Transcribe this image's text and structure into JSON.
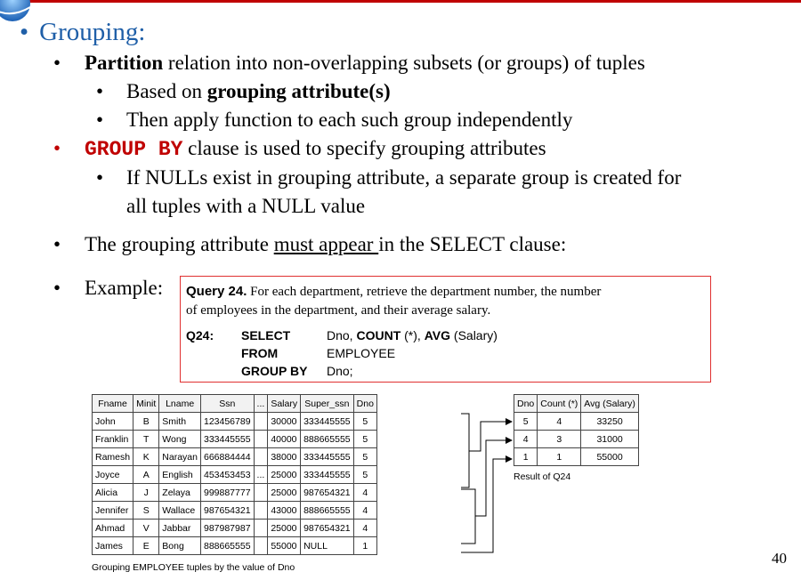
{
  "title": "Grouping:",
  "bullets": {
    "b1_bold": "Partition",
    "b1_rest": " relation into non-overlapping subsets (or groups) of tuples",
    "b1a_pre": "Based on ",
    "b1a_bold": "grouping attribute(s)",
    "b1b": "Then apply function to each such group independently",
    "b2_code": "GROUP BY",
    "b2_rest": " clause is used to specify grouping attributes",
    "b2a_line1": "If NULLs exist in grouping attribute, a separate group is created for",
    "b2a_line2": "all tuples with a NULL value",
    "b3_pre": "The grouping attribute ",
    "b3_u": "must appear ",
    "b3_post": "in the SELECT clause:",
    "b4": "Example:"
  },
  "query": {
    "label": "Query 24.",
    "text1": " For each department, retrieve the department number, the number",
    "text2": "of employees in the department, and their average salary.",
    "q_id": "Q24:",
    "select_kw": "SELECT",
    "select_rest_a": "Dno, ",
    "select_count": "COUNT",
    "select_rest_b": " (*), ",
    "select_avg": "AVG",
    "select_rest_c": " (Salary)",
    "from_kw": "FROM",
    "from_rest": "EMPLOYEE",
    "group_kw": "GROUP BY",
    "group_rest": "Dno;"
  },
  "employee": {
    "headers": [
      "Fname",
      "Minit",
      "Lname",
      "Ssn",
      "...",
      "Salary",
      "Super_ssn",
      "Dno"
    ],
    "rows": [
      [
        "John",
        "B",
        "Smith",
        "123456789",
        "",
        "30000",
        "333445555",
        "5"
      ],
      [
        "Franklin",
        "T",
        "Wong",
        "333445555",
        "",
        "40000",
        "888665555",
        "5"
      ],
      [
        "Ramesh",
        "K",
        "Narayan",
        "666884444",
        "",
        "38000",
        "333445555",
        "5"
      ],
      [
        "Joyce",
        "A",
        "English",
        "453453453",
        "...",
        "25000",
        "333445555",
        "5"
      ],
      [
        "Alicia",
        "J",
        "Zelaya",
        "999887777",
        "",
        "25000",
        "987654321",
        "4"
      ],
      [
        "Jennifer",
        "S",
        "Wallace",
        "987654321",
        "",
        "43000",
        "888665555",
        "4"
      ],
      [
        "Ahmad",
        "V",
        "Jabbar",
        "987987987",
        "",
        "25000",
        "987654321",
        "4"
      ],
      [
        "James",
        "E",
        "Bong",
        "888665555",
        "",
        "55000",
        "NULL",
        "1"
      ]
    ],
    "caption": "Grouping EMPLOYEE tuples by the value of Dno"
  },
  "result": {
    "headers": [
      "Dno",
      "Count (*)",
      "Avg (Salary)"
    ],
    "rows": [
      [
        "5",
        "4",
        "33250"
      ],
      [
        "4",
        "3",
        "31000"
      ],
      [
        "1",
        "1",
        "55000"
      ]
    ],
    "caption": "Result of Q24"
  },
  "page_number": "40"
}
